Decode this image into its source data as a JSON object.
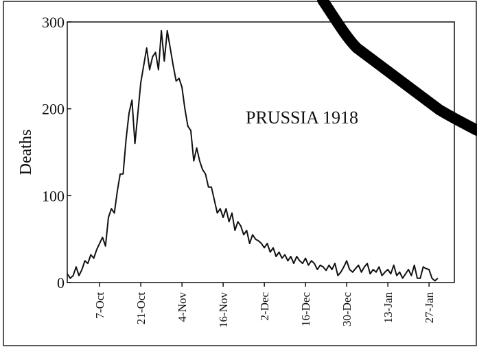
{
  "chart_data": {
    "type": "line",
    "title": "PRUSSIA 1918",
    "ylabel": "Deaths",
    "categories": [
      null,
      null,
      null,
      null,
      null,
      null,
      null,
      null,
      null,
      null,
      null,
      "7-Oct",
      null,
      null,
      null,
      null,
      null,
      null,
      null,
      null,
      null,
      null,
      null,
      null,
      null,
      "21-Oct",
      null,
      null,
      null,
      null,
      null,
      null,
      null,
      null,
      null,
      null,
      null,
      null,
      null,
      "4-Nov",
      null,
      null,
      null,
      null,
      null,
      null,
      null,
      null,
      null,
      null,
      null,
      null,
      null,
      "16-Nov",
      null,
      null,
      null,
      null,
      null,
      null,
      null,
      null,
      null,
      null,
      null,
      null,
      null,
      "2-Dec",
      null,
      null,
      null,
      null,
      null,
      null,
      null,
      null,
      null,
      null,
      null,
      null,
      null,
      "16-Dec",
      null,
      null,
      null,
      null,
      null,
      null,
      null,
      null,
      null,
      null,
      null,
      null,
      null,
      "30-Dec",
      null,
      null,
      null,
      null,
      null,
      null,
      null,
      null,
      null,
      null,
      null,
      null,
      null,
      "13-Jan",
      null,
      null,
      null,
      null,
      null,
      null,
      null,
      null,
      null,
      null,
      null,
      null,
      null,
      "27-Jan",
      null,
      null,
      null,
      null,
      null,
      null,
      null
    ],
    "series": [
      {
        "name": null,
        "color": "#111111",
        "values": [
          10,
          5,
          8,
          18,
          8,
          15,
          25,
          22,
          32,
          28,
          38,
          45,
          52,
          42,
          75,
          85,
          80,
          105,
          125,
          125,
          165,
          195,
          210,
          160,
          195,
          230,
          250,
          270,
          245,
          260,
          265,
          245,
          290,
          255,
          290,
          270,
          250,
          232,
          235,
          225,
          200,
          180,
          175,
          140,
          155,
          140,
          130,
          125,
          110,
          110,
          95,
          80,
          85,
          75,
          85,
          70,
          80,
          60,
          70,
          65,
          55,
          60,
          45,
          55,
          50,
          48,
          45,
          40,
          45,
          35,
          40,
          30,
          35,
          28,
          32,
          25,
          30,
          22,
          30,
          25,
          22,
          28,
          20,
          25,
          22,
          15,
          20,
          18,
          14,
          20,
          15,
          22,
          8,
          12,
          18,
          25,
          15,
          12,
          16,
          20,
          12,
          18,
          22,
          10,
          15,
          12,
          18,
          8,
          12,
          15,
          10,
          20,
          8,
          12,
          5,
          10,
          15,
          8,
          20,
          5,
          5,
          18,
          16,
          15,
          5,
          2,
          5,
          null,
          null,
          null,
          null
        ]
      }
    ],
    "ylim": [
      0,
      300
    ],
    "yticks": [
      0,
      100,
      200,
      300
    ],
    "grid": false
  }
}
